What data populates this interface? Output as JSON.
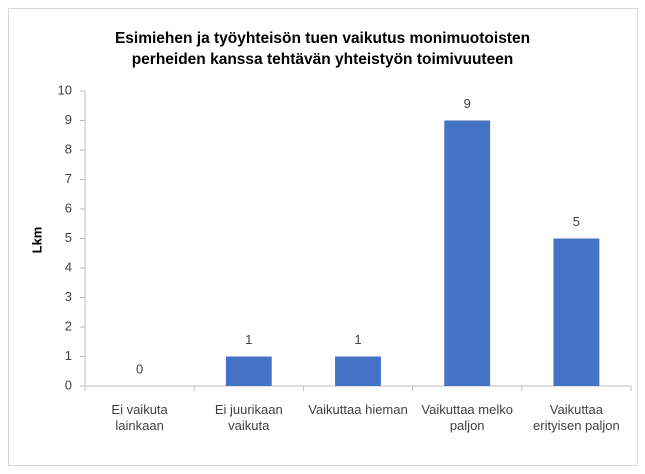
{
  "chart_data": {
    "type": "bar",
    "title": "Esimiehen ja työyhteisön tuen vaikutus monimuotoisten\nperheiden kanssa tehtävän yhteistyön toimivuuteen",
    "y_label": "Lkm",
    "categories": [
      "Ei vaikuta\nlainkaan",
      "Ei juurikaan\nvaikuta",
      "Vaikuttaa hieman",
      "Vaikuttaa melko\npaljon",
      "Vaikuttaa\nerityisen paljon"
    ],
    "values": [
      0,
      1,
      1,
      9,
      5
    ],
    "color": "#4472c4",
    "ylim": [
      0,
      10
    ],
    "yticks": [
      0,
      1,
      2,
      3,
      4,
      5,
      6,
      7,
      8,
      9,
      10
    ],
    "grid": false
  }
}
